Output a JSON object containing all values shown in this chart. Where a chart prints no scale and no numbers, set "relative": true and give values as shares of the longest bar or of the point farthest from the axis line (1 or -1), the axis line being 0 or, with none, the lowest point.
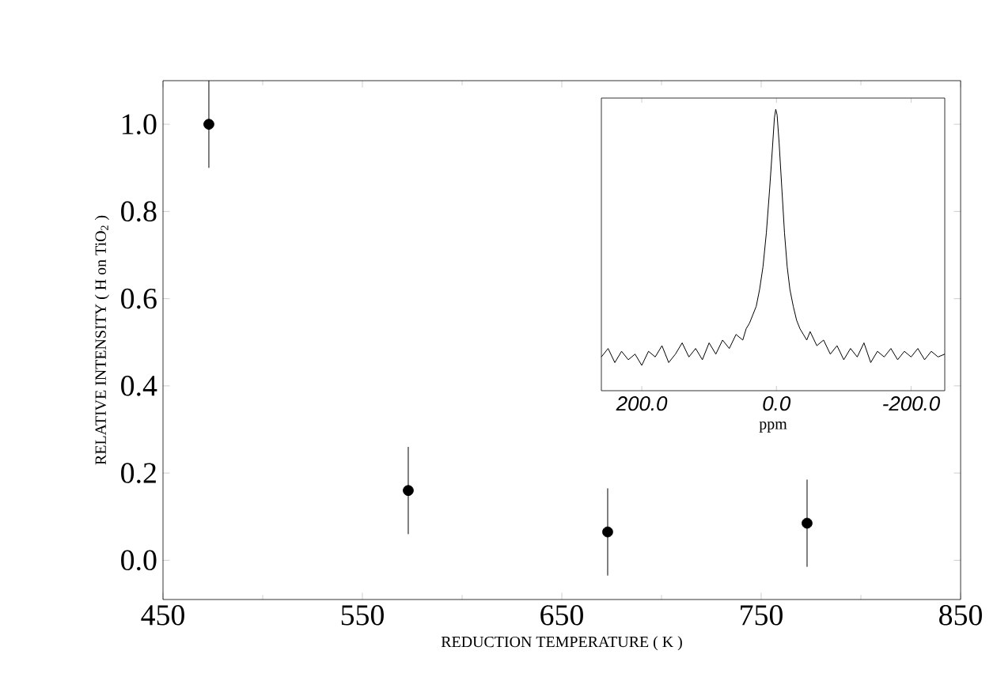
{
  "chart_data": [
    {
      "type": "scatter",
      "xlabel": "REDUCTION TEMPERATURE  ( K )",
      "ylabel": "RELATIVE INTENSITY  ( H on TiO$_{2}$ )",
      "x": [
        473,
        573,
        673,
        773
      ],
      "series": [
        {
          "color": "#000000",
          "values": [
            1.0,
            0.16,
            0.065,
            0.085
          ],
          "errors": [
            0.1,
            0.1,
            0.1,
            0.1
          ]
        }
      ],
      "xlim": [
        450,
        850
      ],
      "ylim": [
        -0.09,
        1.1
      ],
      "xticks": [
        450,
        550,
        650,
        750,
        850
      ],
      "yticks": [
        {
          "value": 0,
          "label": "0.0"
        },
        {
          "value": 0.2,
          "label": "0.2"
        },
        {
          "value": 0.4,
          "label": "0.4"
        },
        {
          "value": 0.6,
          "label": "0.6"
        },
        {
          "value": 0.8,
          "label": "0.8"
        },
        {
          "value": 1,
          "label": "1.0"
        }
      ],
      "marker": "circle"
    },
    {
      "type": "line",
      "relative": true,
      "xlabel": "ppm",
      "tick_labels": "x",
      "x": [
        260,
        250,
        240,
        230,
        220,
        210,
        200,
        190,
        180,
        170,
        160,
        150,
        140,
        130,
        120,
        110,
        100,
        90,
        80,
        70,
        60,
        50,
        45,
        40,
        35,
        30,
        25,
        20,
        15,
        10,
        6,
        3,
        1,
        -1,
        -4,
        -8,
        -12,
        -16,
        -20,
        -25,
        -30,
        -35,
        -40,
        -45,
        -50,
        -60,
        -70,
        -80,
        -90,
        -100,
        -110,
        -120,
        -130,
        -140,
        -150,
        -160,
        -170,
        -180,
        -190,
        -200,
        -210,
        -220,
        -230,
        -240,
        -250
      ],
      "series": [
        {
          "color": "#000000",
          "values": [
            0.12,
            0.15,
            0.1,
            0.14,
            0.11,
            0.13,
            0.09,
            0.14,
            0.12,
            0.16,
            0.1,
            0.13,
            0.17,
            0.12,
            0.15,
            0.11,
            0.17,
            0.13,
            0.18,
            0.15,
            0.2,
            0.18,
            0.22,
            0.24,
            0.27,
            0.3,
            0.36,
            0.44,
            0.56,
            0.72,
            0.86,
            0.97,
            1.0,
            0.98,
            0.88,
            0.72,
            0.56,
            0.44,
            0.36,
            0.3,
            0.25,
            0.22,
            0.2,
            0.18,
            0.21,
            0.16,
            0.18,
            0.13,
            0.16,
            0.11,
            0.15,
            0.12,
            0.17,
            0.1,
            0.14,
            0.12,
            0.15,
            0.11,
            0.14,
            0.12,
            0.15,
            0.11,
            0.14,
            0.12,
            0.13
          ]
        }
      ],
      "xlim": [
        260,
        -250
      ],
      "xticks": [
        {
          "value": 200,
          "label": "200.0"
        },
        {
          "value": 0,
          "label": "0.0"
        },
        {
          "value": -200,
          "label": "-200.0"
        }
      ]
    }
  ]
}
